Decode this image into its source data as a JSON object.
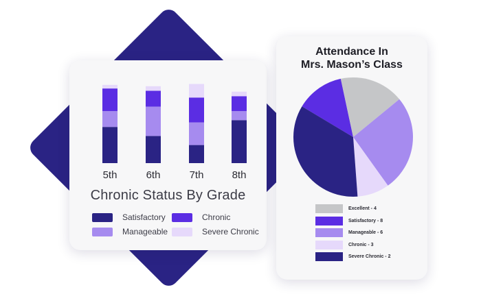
{
  "colors": {
    "satisfactory": "#2a2384",
    "manageable": "#a68bef",
    "chronic": "#5b2de3",
    "severe_chronic": "#e6d9fb",
    "excellent": "#c5c6c8"
  },
  "chart_data": [
    {
      "type": "bar",
      "stacked": true,
      "title": "Chronic Status By Grade",
      "categories": [
        "5th",
        "6th",
        "7th",
        "8th"
      ],
      "series": [
        {
          "name": "Satisfactory",
          "values": [
            8,
            6,
            4,
            9.5
          ]
        },
        {
          "name": "Manageable",
          "values": [
            3.5,
            6.5,
            5,
            2
          ]
        },
        {
          "name": "Chronic",
          "values": [
            5,
            3.5,
            5.5,
            3.3
          ]
        },
        {
          "name": "Severe Chronic",
          "values": [
            0.8,
            1,
            3,
            1
          ]
        }
      ],
      "legend_position": "bottom",
      "axes_visible": false,
      "grid": false
    },
    {
      "type": "pie",
      "title": [
        "Attendance In",
        "Mrs. Mason’s Class"
      ],
      "slices": [
        {
          "label": "Chronic",
          "value": 3
        },
        {
          "label": "Excellent",
          "value": 4
        },
        {
          "label": "Manageable",
          "value": 6
        },
        {
          "label": "Severe Chronic",
          "value": 2
        },
        {
          "label": "Satisfactory",
          "value": 8
        }
      ],
      "legend": [
        {
          "key": "excellent",
          "text": "Excellent - 4"
        },
        {
          "key": "satisfactory",
          "text": "Satisfactory - 8"
        },
        {
          "key": "manageable",
          "text": "Manageable - 6"
        },
        {
          "key": "chronic",
          "text": "Chronic - 3"
        },
        {
          "key": "severe_chronic",
          "text": "Severe Chronic - 2"
        }
      ],
      "legend_position": "bottom"
    }
  ],
  "left_legend": [
    {
      "key": "satisfactory",
      "text": "Satisfactory"
    },
    {
      "key": "chronic",
      "text": "Chronic"
    },
    {
      "key": "manageable",
      "text": "Manageable"
    },
    {
      "key": "severe_chronic",
      "text": "Severe Chronic"
    }
  ]
}
